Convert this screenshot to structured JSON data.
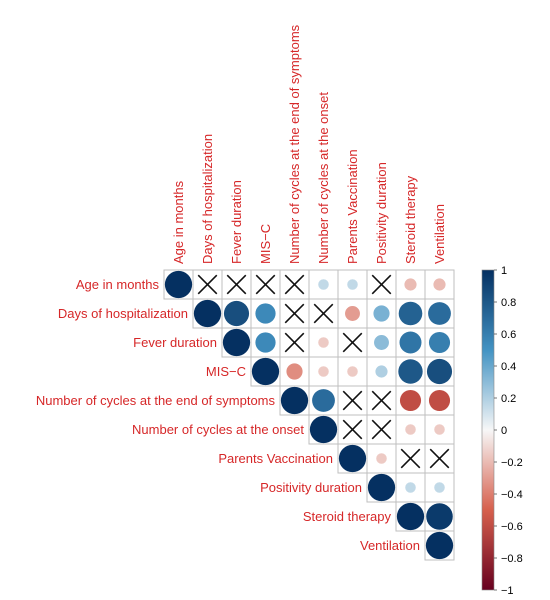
{
  "chart_data": {
    "type": "heatmap",
    "layout": "upper-triangular correlation plot",
    "variables": [
      "Age in months",
      "Days of hospitalization",
      "Fever duration",
      "MIS−C",
      "Number of cycles at the end of symptoms",
      "Number of cycles at the onset",
      "Parents Vaccination",
      "Positivity duration",
      "Steroid therapy",
      "Ventilation"
    ],
    "matrix": [
      [
        1,
        null,
        null,
        null,
        null,
        0.15,
        0.15,
        null,
        -0.2,
        -0.2
      ],
      [
        null,
        1,
        0.85,
        0.55,
        null,
        null,
        -0.3,
        0.35,
        0.75,
        0.7
      ],
      [
        null,
        0.85,
        1,
        0.55,
        null,
        -0.15,
        null,
        0.3,
        0.65,
        0.6
      ],
      [
        null,
        0.55,
        0.55,
        1,
        -0.35,
        -0.15,
        -0.15,
        0.2,
        0.8,
        0.85
      ],
      [
        null,
        null,
        null,
        -0.35,
        1,
        0.7,
        null,
        null,
        -0.6,
        -0.6
      ],
      [
        0.15,
        null,
        -0.15,
        -0.15,
        0.7,
        1,
        null,
        null,
        -0.15,
        -0.15
      ],
      [
        0.15,
        -0.3,
        null,
        -0.15,
        null,
        null,
        1,
        -0.15,
        null,
        null
      ],
      [
        null,
        0.35,
        0.3,
        0.2,
        null,
        null,
        -0.15,
        1,
        0.15,
        0.15
      ],
      [
        -0.2,
        0.75,
        0.65,
        0.8,
        -0.6,
        -0.15,
        null,
        0.15,
        1,
        0.95
      ],
      [
        -0.2,
        0.7,
        0.6,
        0.85,
        -0.6,
        -0.15,
        null,
        0.15,
        0.95,
        1
      ]
    ],
    "colorbar": {
      "range": [
        -1,
        1
      ],
      "ticks": [
        "1",
        "0.8",
        "0.6",
        "0.4",
        "0.2",
        "0",
        "−0.2",
        "−0.4",
        "−0.6",
        "−0.8",
        "−1"
      ],
      "low_color": "#67001f",
      "mid_color": "#f7f7f7",
      "high_color": "#053061"
    },
    "insignificant_marker": "cross",
    "label_color": "#d62728",
    "grid_color": "#bfbfbf"
  }
}
